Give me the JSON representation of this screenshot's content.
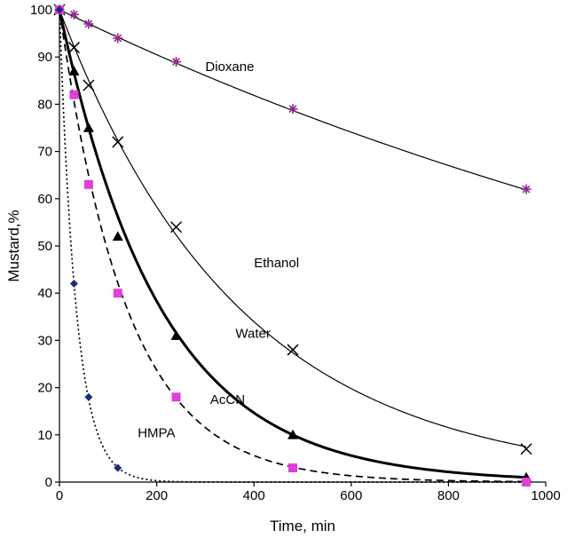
{
  "chart_data": {
    "type": "scatter",
    "xlabel": "Time, min",
    "ylabel": "Mustard,%",
    "xlim": [
      0,
      1000
    ],
    "ylim": [
      0,
      100
    ],
    "xticks": [
      0,
      200,
      400,
      600,
      800,
      1000
    ],
    "yticks": [
      0,
      10,
      20,
      30,
      40,
      50,
      60,
      70,
      80,
      90,
      100
    ],
    "grid": false,
    "legend": "none",
    "series": [
      {
        "name": "Dioxane",
        "marker": "asterisk",
        "marker_color": "#8e2a8e",
        "line_style": "thin-solid",
        "fit_k": 0.0005,
        "x": [
          0,
          30,
          60,
          120,
          240,
          480,
          960
        ],
        "y": [
          100,
          99,
          97,
          94,
          89,
          79,
          62
        ]
      },
      {
        "name": "Ethanol",
        "marker": "x",
        "marker_color": "#000000",
        "line_style": "thin-solid",
        "fit_k": 0.0027,
        "x": [
          0,
          30,
          60,
          120,
          240,
          480,
          960
        ],
        "y": [
          100,
          92,
          84,
          72,
          54,
          28,
          7
        ]
      },
      {
        "name": "Water",
        "marker": "triangle",
        "marker_color": "#000000",
        "line_style": "thick-solid",
        "fit_k": 0.0048,
        "x": [
          0,
          30,
          60,
          120,
          240,
          480,
          960
        ],
        "y": [
          100,
          87,
          75,
          52,
          31,
          10,
          1
        ]
      },
      {
        "name": "AcCN",
        "marker": "square",
        "marker_color": "#e040d8",
        "line_style": "dashed",
        "fit_k": 0.0072,
        "x": [
          0,
          30,
          60,
          120,
          240,
          480,
          960
        ],
        "y": [
          100,
          82,
          63,
          40,
          18,
          3,
          0
        ]
      },
      {
        "name": "HMPA",
        "marker": "diamond",
        "marker_color": "#1f2a7a",
        "line_style": "dotted",
        "fit_k": 0.029,
        "x": [
          0,
          30,
          60,
          120
        ],
        "y": [
          100,
          42,
          18,
          3
        ]
      }
    ],
    "annotations": [
      {
        "text": "Dioxane",
        "x": 300,
        "y": 87
      },
      {
        "text": "Ethanol",
        "x": 400,
        "y": 45.5
      },
      {
        "text": "Water",
        "x": 362,
        "y": 30.5
      },
      {
        "text": "AcCN",
        "x": 310,
        "y": 16.5
      },
      {
        "text": "HMPA",
        "x": 161,
        "y": 9.5
      }
    ]
  }
}
